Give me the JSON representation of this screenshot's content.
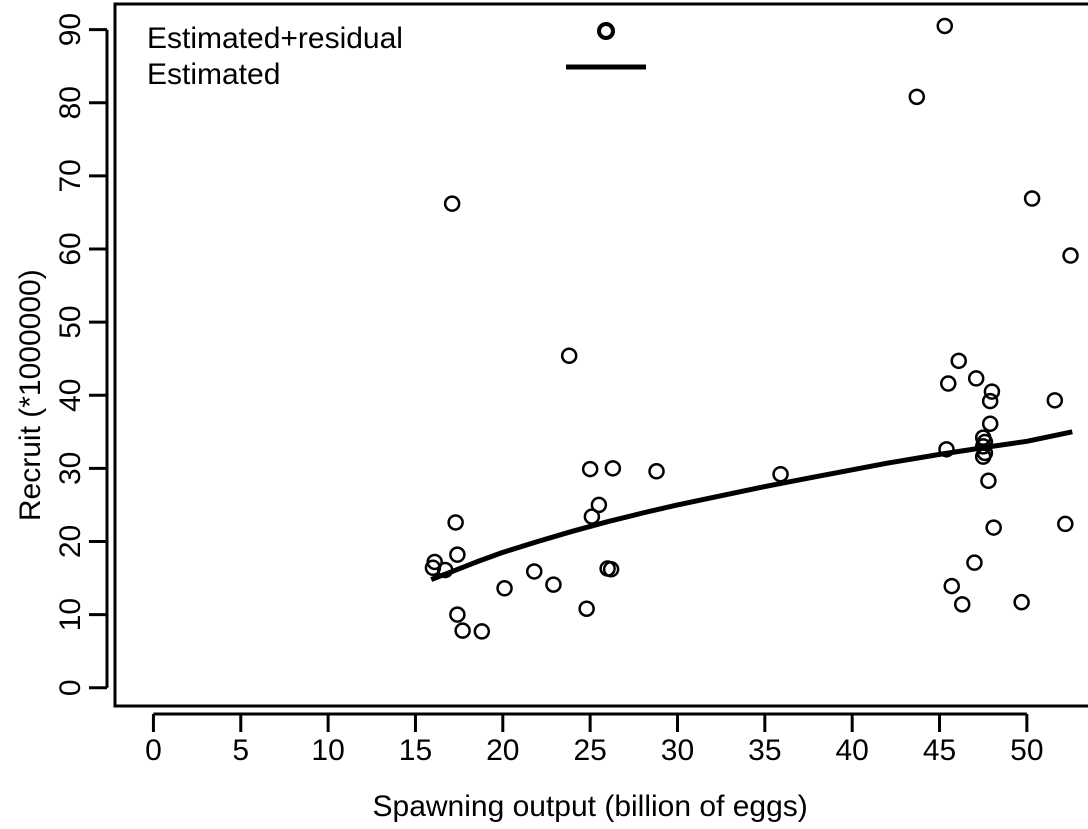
{
  "chart_data": {
    "type": "scatter",
    "title": "",
    "xlabel": "Spawning output (billion of eggs)",
    "ylabel": "Recruit (*1000000)",
    "xlim": [
      -2.2,
      53.5
    ],
    "ylim": [
      -2.5,
      93.5
    ],
    "x_ticks": [
      0,
      5,
      10,
      15,
      20,
      25,
      30,
      35,
      40,
      45,
      50
    ],
    "y_ticks": [
      0,
      10,
      20,
      30,
      40,
      50,
      60,
      70,
      80,
      90
    ],
    "grid": false,
    "legend_position": "top-left",
    "series": [
      {
        "name": "Estimated+residual",
        "kind": "points",
        "x": [
          16.0,
          16.1,
          16.7,
          17.3,
          17.4,
          17.1,
          17.4,
          17.7,
          18.8,
          20.1,
          21.8,
          22.9,
          23.8,
          24.8,
          25.0,
          25.1,
          25.5,
          26.0,
          26.2,
          26.3,
          28.8,
          35.9,
          43.7,
          45.3,
          45.4,
          45.5,
          45.7,
          46.1,
          46.3,
          47.0,
          47.1,
          47.5,
          47.5,
          47.5,
          47.6,
          47.6,
          47.8,
          47.9,
          47.9,
          48.0,
          48.1,
          49.7,
          50.3,
          51.6,
          52.2,
          52.5
        ],
        "y": [
          16.4,
          17.2,
          16.1,
          22.6,
          18.2,
          66.2,
          10.0,
          7.8,
          7.7,
          13.6,
          15.9,
          14.1,
          45.4,
          10.8,
          29.9,
          23.4,
          25.0,
          16.3,
          16.2,
          30.0,
          29.6,
          29.2,
          80.8,
          90.5,
          32.6,
          41.6,
          13.9,
          44.7,
          11.4,
          17.1,
          42.3,
          31.6,
          33.0,
          34.2,
          33.6,
          32.1,
          28.3,
          36.1,
          39.2,
          40.5,
          21.9,
          11.7,
          66.9,
          39.3,
          22.4,
          59.1
        ]
      },
      {
        "name": "Estimated",
        "kind": "line",
        "x": [
          15.9,
          17.0,
          18.5,
          20.0,
          22.0,
          24.0,
          26.0,
          28.0,
          30.0,
          32.0,
          35.0,
          38.0,
          40.0,
          42.0,
          45.0,
          48.0,
          50.0,
          52.6
        ],
        "y": [
          14.8,
          15.8,
          17.2,
          18.5,
          20.0,
          21.4,
          22.7,
          23.9,
          25.0,
          26.0,
          27.5,
          28.9,
          29.8,
          30.7,
          31.9,
          33.0,
          33.7,
          35.0
        ]
      }
    ]
  }
}
